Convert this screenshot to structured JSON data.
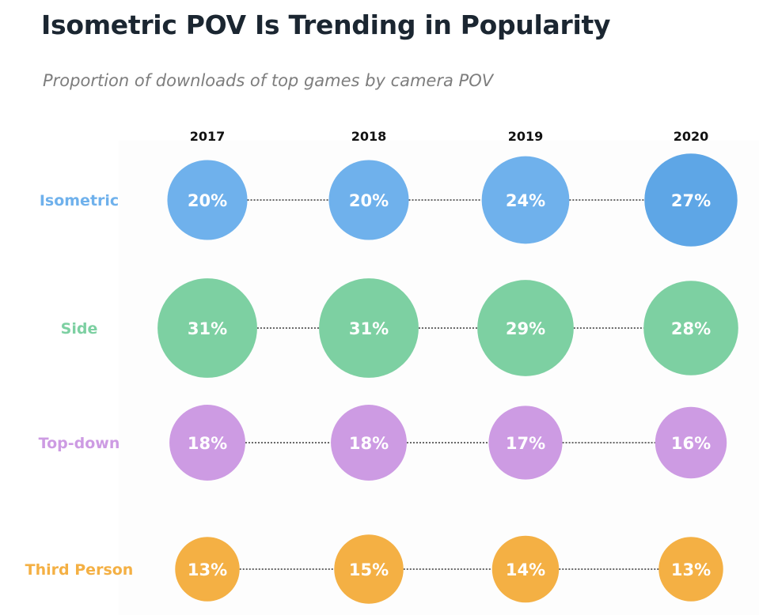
{
  "title": "Isometric POV Is Trending in Popularity",
  "subtitle": "Proportion of downloads of top games by camera POV",
  "chart_data": {
    "type": "bubble-grid",
    "title": "Isometric POV Is Trending in Popularity",
    "subtitle": "Proportion of downloads of top games by camera POV",
    "unit": "%",
    "x": [
      "2017",
      "2018",
      "2019",
      "2020"
    ],
    "series": [
      {
        "name": "Isometric",
        "color": "#6fb1ec",
        "highlight_color": "#5ea6e6",
        "values": [
          20,
          20,
          24,
          27
        ],
        "labels": [
          "20%",
          "20%",
          "24%",
          "27%"
        ]
      },
      {
        "name": "Side",
        "color": "#7dd0a2",
        "values": [
          31,
          31,
          29,
          28
        ],
        "labels": [
          "31%",
          "31%",
          "29%",
          "28%"
        ]
      },
      {
        "name": "Top-down",
        "color": "#cd9be3",
        "values": [
          18,
          18,
          17,
          16
        ],
        "labels": [
          "18%",
          "18%",
          "17%",
          "16%"
        ]
      },
      {
        "name": "Third Person",
        "color": "#f4b044",
        "values": [
          13,
          15,
          14,
          13
        ],
        "labels": [
          "13%",
          "15%",
          "14%",
          "13%"
        ]
      }
    ],
    "legend": "none",
    "grid": false
  }
}
